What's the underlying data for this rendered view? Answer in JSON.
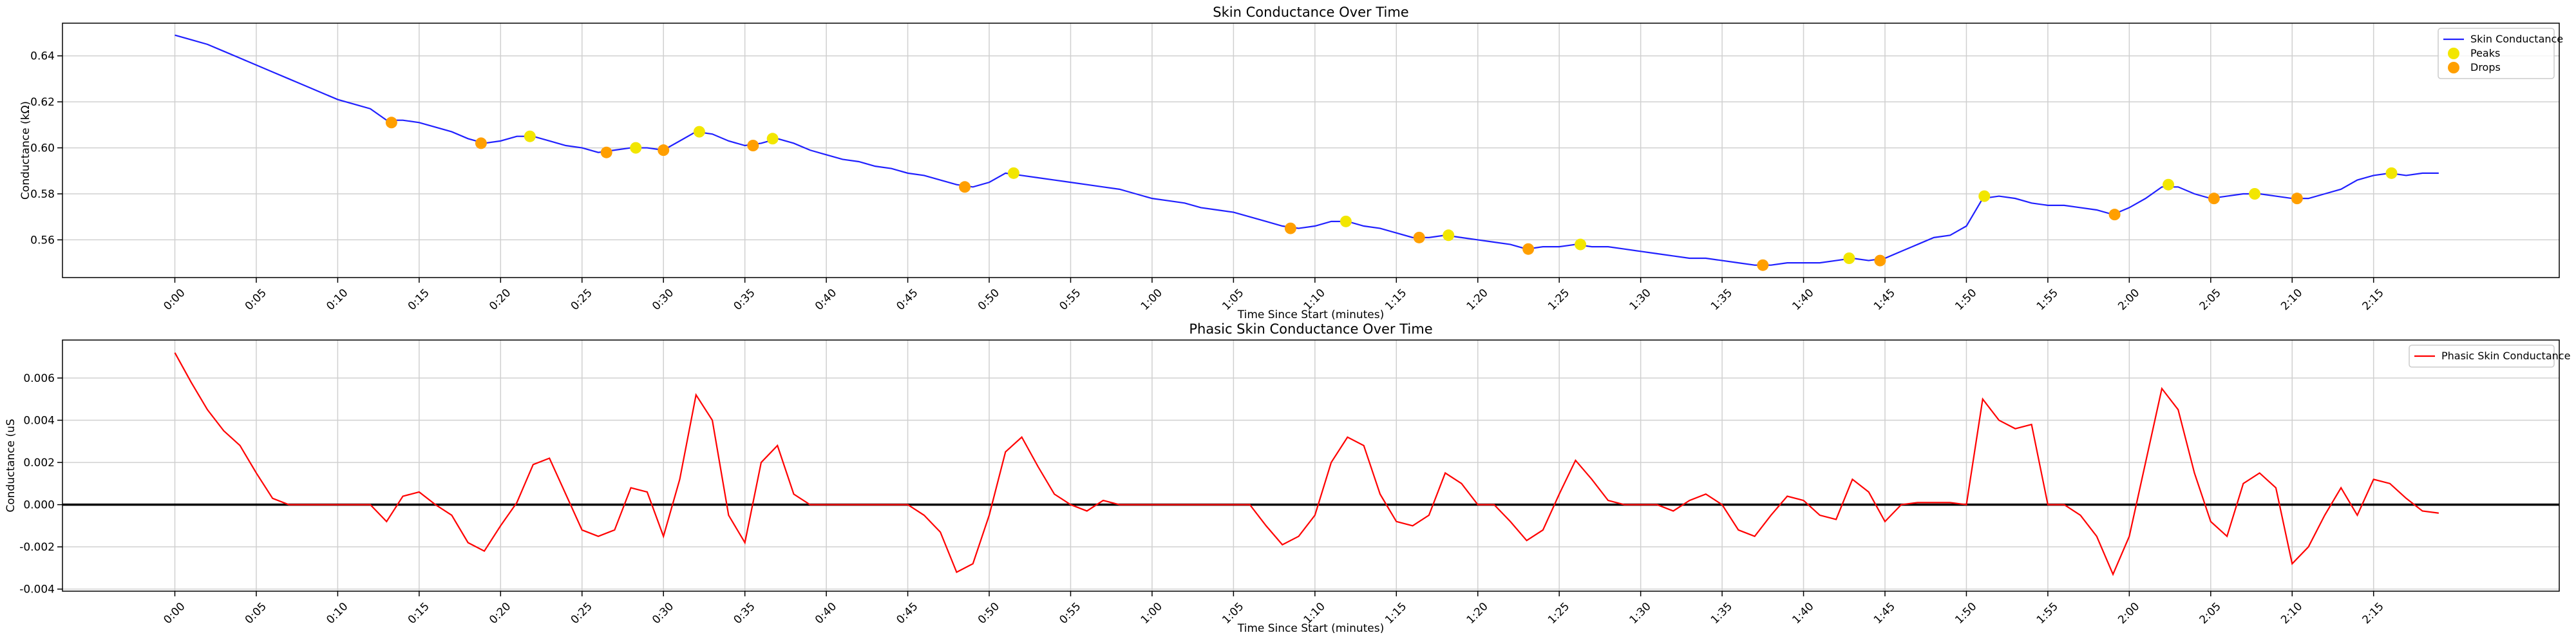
{
  "chart_data": [
    {
      "type": "line",
      "title": "Skin Conductance Over Time",
      "xlabel": "Time Since Start (minutes)",
      "ylabel": "Conductance (kΩ)",
      "grid": true,
      "legend": "upper right",
      "xlim": [
        -6.9,
        146.4
      ],
      "ylim": [
        0.5436,
        0.6542
      ],
      "xticks": [
        {
          "value": 0,
          "label": "0:00"
        },
        {
          "value": 5,
          "label": "0:05"
        },
        {
          "value": 10,
          "label": "0:10"
        },
        {
          "value": 15,
          "label": "0:15"
        },
        {
          "value": 20,
          "label": "0:20"
        },
        {
          "value": 25,
          "label": "0:25"
        },
        {
          "value": 30,
          "label": "0:30"
        },
        {
          "value": 35,
          "label": "0:35"
        },
        {
          "value": 40,
          "label": "0:40"
        },
        {
          "value": 45,
          "label": "0:45"
        },
        {
          "value": 50,
          "label": "0:50"
        },
        {
          "value": 55,
          "label": "0:55"
        },
        {
          "value": 60,
          "label": "1:00"
        },
        {
          "value": 65,
          "label": "1:05"
        },
        {
          "value": 70,
          "label": "1:10"
        },
        {
          "value": 75,
          "label": "1:15"
        },
        {
          "value": 80,
          "label": "1:20"
        },
        {
          "value": 85,
          "label": "1:25"
        },
        {
          "value": 90,
          "label": "1:30"
        },
        {
          "value": 95,
          "label": "1:35"
        },
        {
          "value": 100,
          "label": "1:40"
        },
        {
          "value": 105,
          "label": "1:45"
        },
        {
          "value": 110,
          "label": "1:50"
        },
        {
          "value": 115,
          "label": "1:55"
        },
        {
          "value": 120,
          "label": "2:00"
        },
        {
          "value": 125,
          "label": "2:05"
        },
        {
          "value": 130,
          "label": "2:10"
        },
        {
          "value": 135,
          "label": "2:15"
        }
      ],
      "yticks": [
        {
          "value": 0.56,
          "label": "0.56"
        },
        {
          "value": 0.58,
          "label": "0.58"
        },
        {
          "value": 0.6,
          "label": "0.60"
        },
        {
          "value": 0.62,
          "label": "0.62"
        },
        {
          "value": 0.64,
          "label": "0.64"
        }
      ],
      "x": [
        0,
        1,
        2,
        3,
        4,
        5,
        6,
        7,
        8,
        9,
        10,
        11,
        12,
        13,
        14,
        15,
        16,
        17,
        18,
        19,
        20,
        21,
        22,
        23,
        24,
        25,
        26,
        27,
        28,
        29,
        30,
        31,
        32,
        33,
        34,
        35,
        36,
        37,
        38,
        39,
        40,
        41,
        42,
        43,
        44,
        45,
        46,
        47,
        48,
        49,
        50,
        51,
        52,
        53,
        54,
        55,
        56,
        57,
        58,
        59,
        60,
        61,
        62,
        63,
        64,
        65,
        66,
        67,
        68,
        69,
        70,
        71,
        72,
        73,
        74,
        75,
        76,
        77,
        78,
        79,
        80,
        81,
        82,
        83,
        84,
        85,
        86,
        87,
        88,
        89,
        90,
        91,
        92,
        93,
        94,
        95,
        96,
        97,
        98,
        99,
        100,
        101,
        102,
        103,
        104,
        105,
        106,
        107,
        108,
        109,
        110,
        111,
        112,
        113,
        114,
        115,
        116,
        117,
        118,
        119,
        120,
        121,
        122,
        123,
        124,
        125,
        126,
        127,
        128,
        129,
        130,
        131,
        132,
        133,
        134,
        135,
        136,
        137,
        138,
        139
      ],
      "series": [
        {
          "name": "Skin Conductance",
          "type": "line",
          "color": "#2020ff",
          "values": [
            0.649,
            0.647,
            0.645,
            0.642,
            0.639,
            0.636,
            0.633,
            0.63,
            0.627,
            0.624,
            0.621,
            0.619,
            0.617,
            0.612,
            0.612,
            0.611,
            0.609,
            0.607,
            0.604,
            0.602,
            0.603,
            0.605,
            0.605,
            0.603,
            0.601,
            0.6,
            0.598,
            0.599,
            0.6,
            0.6,
            0.599,
            0.603,
            0.607,
            0.606,
            0.603,
            0.601,
            0.602,
            0.604,
            0.602,
            0.599,
            0.597,
            0.595,
            0.594,
            0.592,
            0.591,
            0.589,
            0.588,
            0.586,
            0.584,
            0.583,
            0.585,
            0.589,
            0.588,
            0.587,
            0.586,
            0.585,
            0.584,
            0.583,
            0.582,
            0.58,
            0.578,
            0.577,
            0.576,
            0.574,
            0.573,
            0.572,
            0.57,
            0.568,
            0.566,
            0.565,
            0.566,
            0.568,
            0.568,
            0.566,
            0.565,
            0.563,
            0.561,
            0.561,
            0.562,
            0.561,
            0.56,
            0.559,
            0.558,
            0.556,
            0.557,
            0.557,
            0.558,
            0.557,
            0.557,
            0.556,
            0.555,
            0.554,
            0.553,
            0.552,
            0.552,
            0.551,
            0.55,
            0.549,
            0.549,
            0.55,
            0.55,
            0.55,
            0.551,
            0.552,
            0.551,
            0.552,
            0.555,
            0.558,
            0.561,
            0.562,
            0.566,
            0.578,
            0.579,
            0.578,
            0.576,
            0.575,
            0.575,
            0.574,
            0.573,
            0.571,
            0.574,
            0.578,
            0.583,
            0.583,
            0.58,
            0.578,
            0.579,
            0.58,
            0.58,
            0.579,
            0.578,
            0.578,
            0.58,
            0.582,
            0.586,
            0.588,
            0.589,
            0.588,
            0.589,
            0.589
          ]
        },
        {
          "name": "Peaks",
          "type": "scatter",
          "color": "#f2e600",
          "x": [
            21.8,
            28.3,
            32.2,
            36.7,
            51.5,
            71.9,
            78.2,
            86.3,
            102.8,
            111.1,
            122.4,
            127.7,
            136.1
          ],
          "values": [
            0.605,
            0.6,
            0.607,
            0.604,
            0.589,
            0.568,
            0.562,
            0.558,
            0.552,
            0.579,
            0.584,
            0.58,
            0.589
          ]
        },
        {
          "name": "Drops",
          "type": "scatter",
          "color": "#ff9f00",
          "x": [
            13.3,
            18.8,
            26.5,
            30.0,
            35.5,
            48.5,
            68.5,
            76.4,
            83.1,
            97.5,
            104.7,
            119.1,
            125.2,
            130.3
          ],
          "values": [
            0.611,
            0.602,
            0.598,
            0.599,
            0.601,
            0.583,
            0.565,
            0.561,
            0.556,
            0.549,
            0.551,
            0.571,
            0.578,
            0.578
          ]
        }
      ]
    },
    {
      "type": "line",
      "title": "Phasic Skin Conductance Over Time",
      "xlabel": "Time Since Start (minutes)",
      "ylabel": "Conductance (uS",
      "grid": true,
      "legend": "upper right",
      "hline": 0,
      "hline_color": "#000000",
      "xlim": [
        -6.9,
        146.4
      ],
      "ylim": [
        -0.0041,
        0.0078
      ],
      "xticks": [
        {
          "value": 0,
          "label": "0:00"
        },
        {
          "value": 5,
          "label": "0:05"
        },
        {
          "value": 10,
          "label": "0:10"
        },
        {
          "value": 15,
          "label": "0:15"
        },
        {
          "value": 20,
          "label": "0:20"
        },
        {
          "value": 25,
          "label": "0:25"
        },
        {
          "value": 30,
          "label": "0:30"
        },
        {
          "value": 35,
          "label": "0:35"
        },
        {
          "value": 40,
          "label": "0:40"
        },
        {
          "value": 45,
          "label": "0:45"
        },
        {
          "value": 50,
          "label": "0:50"
        },
        {
          "value": 55,
          "label": "0:55"
        },
        {
          "value": 60,
          "label": "1:00"
        },
        {
          "value": 65,
          "label": "1:05"
        },
        {
          "value": 70,
          "label": "1:10"
        },
        {
          "value": 75,
          "label": "1:15"
        },
        {
          "value": 80,
          "label": "1:20"
        },
        {
          "value": 85,
          "label": "1:25"
        },
        {
          "value": 90,
          "label": "1:30"
        },
        {
          "value": 95,
          "label": "1:35"
        },
        {
          "value": 100,
          "label": "1:40"
        },
        {
          "value": 105,
          "label": "1:45"
        },
        {
          "value": 110,
          "label": "1:50"
        },
        {
          "value": 115,
          "label": "1:55"
        },
        {
          "value": 120,
          "label": "2:00"
        },
        {
          "value": 125,
          "label": "2:05"
        },
        {
          "value": 130,
          "label": "2:10"
        },
        {
          "value": 135,
          "label": "2:15"
        }
      ],
      "yticks": [
        {
          "value": -0.004,
          "label": "-0.004"
        },
        {
          "value": -0.002,
          "label": "-0.002"
        },
        {
          "value": 0,
          "label": "0.000"
        },
        {
          "value": 0.002,
          "label": "0.002"
        },
        {
          "value": 0.004,
          "label": "0.004"
        },
        {
          "value": 0.006,
          "label": "0.006"
        }
      ],
      "x": [
        0,
        1,
        2,
        3,
        4,
        5,
        6,
        7,
        8,
        9,
        10,
        11,
        12,
        13,
        14,
        15,
        16,
        17,
        18,
        19,
        20,
        21,
        22,
        23,
        24,
        25,
        26,
        27,
        28,
        29,
        30,
        31,
        32,
        33,
        34,
        35,
        36,
        37,
        38,
        39,
        40,
        41,
        42,
        43,
        44,
        45,
        46,
        47,
        48,
        49,
        50,
        51,
        52,
        53,
        54,
        55,
        56,
        57,
        58,
        59,
        60,
        61,
        62,
        63,
        64,
        65,
        66,
        67,
        68,
        69,
        70,
        71,
        72,
        73,
        74,
        75,
        76,
        77,
        78,
        79,
        80,
        81,
        82,
        83,
        84,
        85,
        86,
        87,
        88,
        89,
        90,
        91,
        92,
        93,
        94,
        95,
        96,
        97,
        98,
        99,
        100,
        101,
        102,
        103,
        104,
        105,
        106,
        107,
        108,
        109,
        110,
        111,
        112,
        113,
        114,
        115,
        116,
        117,
        118,
        119,
        120,
        121,
        122,
        123,
        124,
        125,
        126,
        127,
        128,
        129,
        130,
        131,
        132,
        133,
        134,
        135,
        136,
        137,
        138,
        139
      ],
      "series": [
        {
          "name": "Phasic Skin Conductance",
          "type": "line",
          "color": "#ff0000",
          "values": [
            0.0072,
            0.0058,
            0.0045,
            0.0035,
            0.0028,
            0.0015,
            0.0003,
            0,
            0,
            0,
            0,
            0,
            0,
            -0.0008,
            0.0004,
            0.0006,
            0,
            -0.0005,
            -0.0018,
            -0.0022,
            -0.001,
            0.0001,
            0.0019,
            0.0022,
            0.0005,
            -0.0012,
            -0.0015,
            -0.0012,
            0.0008,
            0.0006,
            -0.0015,
            0.0012,
            0.0052,
            0.004,
            -0.0005,
            -0.0018,
            0.002,
            0.0028,
            0.0005,
            0,
            0,
            0,
            0,
            0,
            0,
            0,
            -0.0005,
            -0.0013,
            -0.0032,
            -0.0028,
            -0.0005,
            0.0025,
            0.0032,
            0.0018,
            0.0005,
            0,
            -0.0003,
            0.0002,
            0,
            0,
            0,
            0,
            0,
            0,
            0,
            0,
            0,
            -0.001,
            -0.0019,
            -0.0015,
            -0.0005,
            0.002,
            0.0032,
            0.0028,
            0.0005,
            -0.0008,
            -0.001,
            -0.0005,
            0.0015,
            0.001,
            0,
            0,
            -0.0008,
            -0.0017,
            -0.0012,
            0.0005,
            0.0021,
            0.0012,
            0.0002,
            0,
            0,
            0,
            -0.0003,
            0.0002,
            0.0005,
            0,
            -0.0012,
            -0.0015,
            -0.0005,
            0.0004,
            0.0002,
            -0.0005,
            -0.0007,
            0.0012,
            0.0006,
            -0.0008,
            0,
            0.0001,
            0.0001,
            0.0001,
            0,
            0.005,
            0.004,
            0.0036,
            0.0038,
            0,
            0,
            -0.0005,
            -0.0015,
            -0.0033,
            -0.0015,
            0.002,
            0.0055,
            0.0045,
            0.0015,
            -0.0008,
            -0.0015,
            0.001,
            0.0015,
            0.0008,
            -0.0028,
            -0.002,
            -0.0005,
            0.0008,
            -0.0005,
            0.0012,
            0.001,
            0.0003,
            -0.0003,
            -0.0004
          ]
        }
      ]
    }
  ]
}
